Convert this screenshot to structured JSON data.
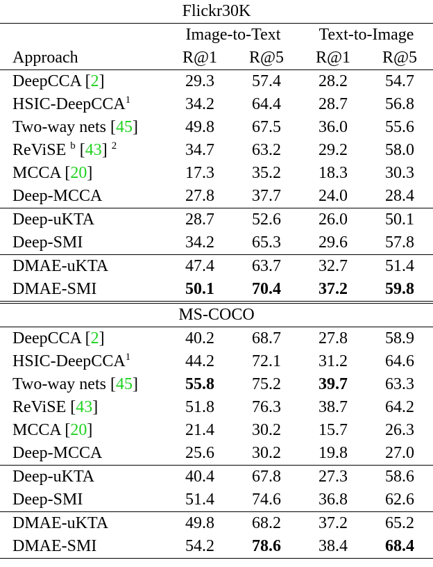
{
  "header": {
    "groups": [
      "Image-to-Text",
      "Text-to-Image"
    ],
    "columns": [
      "Approach",
      "R@1",
      "R@5",
      "R@1",
      "R@5"
    ]
  },
  "sections": [
    {
      "title": "Flickr30K",
      "groups": [
        [
          {
            "approach": [
              {
                "t": "DeepCCA ["
              },
              {
                "t": "2",
                "s": "cite"
              },
              {
                "t": "]"
              }
            ],
            "values": [
              "29.3",
              "57.4",
              "28.2",
              "54.7"
            ],
            "bold": []
          },
          {
            "approach": [
              {
                "t": "HSIC-DeepCCA"
              },
              {
                "t": "1",
                "s": "sup"
              }
            ],
            "values": [
              "34.2",
              "64.4",
              "28.7",
              "56.8"
            ],
            "bold": []
          },
          {
            "approach": [
              {
                "t": "Two-way nets ["
              },
              {
                "t": "45",
                "s": "cite"
              },
              {
                "t": "]"
              }
            ],
            "values": [
              "49.8",
              "67.5",
              "36.0",
              "55.6"
            ],
            "bold": []
          },
          {
            "approach": [
              {
                "t": "ReViSE "
              },
              {
                "t": "b",
                "s": "sup"
              },
              {
                "t": " ["
              },
              {
                "t": "43",
                "s": "cite"
              },
              {
                "t": "] "
              },
              {
                "t": "2",
                "s": "sup"
              }
            ],
            "values": [
              "34.7",
              "63.2",
              "29.2",
              "58.0"
            ],
            "bold": []
          },
          {
            "approach": [
              {
                "t": "MCCA ["
              },
              {
                "t": "20",
                "s": "cite"
              },
              {
                "t": "]"
              }
            ],
            "values": [
              "17.3",
              "35.2",
              "18.3",
              "30.3"
            ],
            "bold": []
          },
          {
            "approach": [
              {
                "t": "Deep-MCCA"
              }
            ],
            "values": [
              "27.8",
              "37.7",
              "24.0",
              "28.4"
            ],
            "bold": []
          }
        ],
        [
          {
            "approach": [
              {
                "t": "Deep-uKTA"
              }
            ],
            "values": [
              "28.7",
              "52.6",
              "26.0",
              "50.1"
            ],
            "bold": []
          },
          {
            "approach": [
              {
                "t": "Deep-SMI"
              }
            ],
            "values": [
              "34.2",
              "65.3",
              "29.6",
              "57.8"
            ],
            "bold": []
          }
        ],
        [
          {
            "approach": [
              {
                "t": "DMAE-uKTA"
              }
            ],
            "values": [
              "47.4",
              "63.7",
              "32.7",
              "51.4"
            ],
            "bold": []
          },
          {
            "approach": [
              {
                "t": "DMAE-SMI"
              }
            ],
            "values": [
              "50.1",
              "70.4",
              "37.2",
              "59.8"
            ],
            "bold": [
              0,
              1,
              2,
              3
            ]
          }
        ]
      ]
    },
    {
      "title": "MS-COCO",
      "groups": [
        [
          {
            "approach": [
              {
                "t": "DeepCCA ["
              },
              {
                "t": "2",
                "s": "cite"
              },
              {
                "t": "]"
              }
            ],
            "values": [
              "40.2",
              "68.7",
              "27.8",
              "58.9"
            ],
            "bold": []
          },
          {
            "approach": [
              {
                "t": "HSIC-DeepCCA"
              },
              {
                "t": "1",
                "s": "sup"
              }
            ],
            "values": [
              "44.2",
              "72.1",
              "31.2",
              "64.6"
            ],
            "bold": []
          },
          {
            "approach": [
              {
                "t": "Two-way nets ["
              },
              {
                "t": "45",
                "s": "cite"
              },
              {
                "t": "]"
              }
            ],
            "values": [
              "55.8",
              "75.2",
              "39.7",
              "63.3"
            ],
            "bold": [
              0,
              2
            ]
          },
          {
            "approach": [
              {
                "t": "ReViSE ["
              },
              {
                "t": "43",
                "s": "cite"
              },
              {
                "t": "]"
              }
            ],
            "values": [
              "51.8",
              "76.3",
              "38.7",
              "64.2"
            ],
            "bold": []
          },
          {
            "approach": [
              {
                "t": "MCCA ["
              },
              {
                "t": "20",
                "s": "cite"
              },
              {
                "t": "]"
              }
            ],
            "values": [
              "21.4",
              "30.2",
              "15.7",
              "26.3"
            ],
            "bold": []
          },
          {
            "approach": [
              {
                "t": "Deep-MCCA"
              }
            ],
            "values": [
              "25.6",
              "30.2",
              "19.8",
              "27.0"
            ],
            "bold": []
          }
        ],
        [
          {
            "approach": [
              {
                "t": "Deep-uKTA"
              }
            ],
            "values": [
              "40.4",
              "67.8",
              "27.3",
              "58.6"
            ],
            "bold": []
          },
          {
            "approach": [
              {
                "t": "Deep-SMI"
              }
            ],
            "values": [
              "51.4",
              "74.6",
              "36.8",
              "62.6"
            ],
            "bold": []
          }
        ],
        [
          {
            "approach": [
              {
                "t": "DMAE-uKTA"
              }
            ],
            "values": [
              "49.8",
              "68.2",
              "37.2",
              "65.2"
            ],
            "bold": []
          },
          {
            "approach": [
              {
                "t": "DMAE-SMI"
              }
            ],
            "values": [
              "54.2",
              "78.6",
              "38.4",
              "68.4"
            ],
            "bold": [
              1,
              3
            ]
          }
        ]
      ]
    }
  ]
}
